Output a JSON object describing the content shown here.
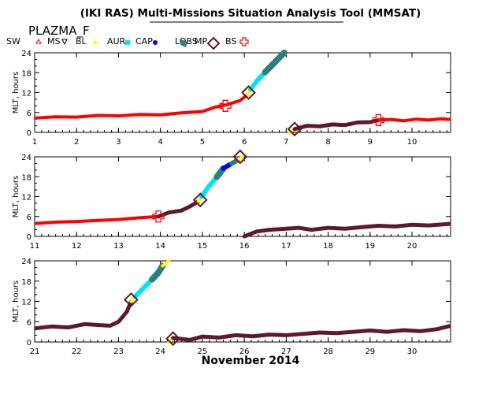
{
  "title": "(IKI RAS) Multi-Missions Situation Analysis Tool (MMSAT)",
  "subtitle": "PLAZMA_F",
  "legend": [
    {
      "label": "SW",
      "color": "#000000",
      "icon": "none-icon"
    },
    {
      "label": "MS",
      "color": "#ff0000",
      "icon": "triangle-up-icon"
    },
    {
      "label": "BL",
      "color": "#000000",
      "icon": "triangle-down-icon"
    },
    {
      "label": "AUR",
      "color": "#ffff00",
      "icon": "dot-icon"
    },
    {
      "label": "CAP",
      "color": "#00e5ee",
      "icon": "square-icon"
    },
    {
      "label": "LOBS",
      "color": "#0000ff",
      "icon": "dot-icon"
    },
    {
      "label": "MP",
      "color": "#2f7f7f",
      "icon": "flag-icon"
    },
    {
      "label": "BS",
      "color": "#5c1a2a",
      "icon": "diamond-icon"
    },
    {
      "label": "",
      "color": "#ff0000",
      "icon": "cross-icon"
    }
  ],
  "xlabel": "November 2014",
  "chart_data": [
    {
      "type": "line",
      "ylabel": "MLT, hours",
      "xlim": [
        1,
        10.92
      ],
      "ylim": [
        0,
        24
      ],
      "yticks": [
        0,
        6,
        12,
        18,
        24
      ],
      "xticks": [
        1,
        2,
        3,
        4,
        5,
        6,
        7,
        8,
        9,
        10
      ],
      "series": [
        {
          "color": "#ff0000",
          "width": 4,
          "x": [
            1.0,
            1.5,
            2.0,
            2.5,
            3.0,
            3.5,
            4.0,
            4.5,
            5.0,
            5.3,
            5.6,
            5.9,
            6.08
          ],
          "y": [
            4.3,
            4.7,
            4.6,
            5.1,
            5.0,
            5.4,
            5.3,
            5.9,
            6.3,
            7.6,
            8.4,
            9.6,
            11.4
          ]
        },
        {
          "color": "#ffff00",
          "width": 4,
          "x": [
            6.08,
            6.15
          ],
          "y": [
            11.4,
            13.0
          ]
        },
        {
          "color": "#00e5ee",
          "width": 6,
          "x": [
            6.15,
            6.3,
            6.5
          ],
          "y": [
            13.0,
            15.5,
            18.2
          ]
        },
        {
          "color": "#2f7f7f",
          "width": 8,
          "x": [
            6.5,
            6.7,
            6.95
          ],
          "y": [
            18.2,
            20.8,
            24.0
          ]
        },
        {
          "color": "#ffff00",
          "width": 4,
          "x": [
            7.08,
            7.2
          ],
          "y": [
            0.0,
            1.0
          ]
        },
        {
          "color": "#5c1a2a",
          "width": 5,
          "x": [
            7.2,
            7.5,
            7.8,
            8.1,
            8.4,
            8.7,
            9.0,
            9.2
          ],
          "y": [
            1.0,
            2.0,
            1.8,
            2.4,
            2.2,
            3.0,
            3.1,
            3.7
          ]
        },
        {
          "color": "#ff0000",
          "width": 4,
          "x": [
            9.2,
            9.5,
            9.8,
            10.1,
            10.4,
            10.7,
            10.92
          ],
          "y": [
            3.7,
            3.9,
            3.5,
            4.0,
            3.7,
            4.1,
            3.9
          ]
        }
      ],
      "markers": [
        {
          "kind": "cross",
          "x": 5.55,
          "y": 8.0
        },
        {
          "kind": "diamond",
          "x": 6.1,
          "y": 12.0
        },
        {
          "kind": "diamond",
          "x": 7.2,
          "y": 1.0
        },
        {
          "kind": "cross",
          "x": 9.2,
          "y": 3.7
        }
      ]
    },
    {
      "type": "line",
      "ylabel": "MLT, hours",
      "xlim": [
        11,
        20.92
      ],
      "ylim": [
        0,
        24
      ],
      "yticks": [
        0,
        6,
        12,
        18,
        24
      ],
      "xticks": [
        11,
        12,
        13,
        14,
        15,
        16,
        17,
        18,
        19,
        20
      ],
      "series": [
        {
          "color": "#ff0000",
          "width": 4,
          "x": [
            11.0,
            11.5,
            12.0,
            12.5,
            13.0,
            13.5,
            13.95
          ],
          "y": [
            3.9,
            4.3,
            4.5,
            4.8,
            5.1,
            5.6,
            6.0
          ]
        },
        {
          "color": "#5c1a2a",
          "width": 5,
          "x": [
            13.95,
            14.2,
            14.5,
            14.7,
            14.9
          ],
          "y": [
            6.0,
            7.2,
            7.8,
            9.0,
            10.5
          ]
        },
        {
          "color": "#ffff00",
          "width": 4,
          "x": [
            14.9,
            14.98
          ],
          "y": [
            10.5,
            12.0
          ]
        },
        {
          "color": "#00e5ee",
          "width": 6,
          "x": [
            14.98,
            15.15,
            15.35
          ],
          "y": [
            12.0,
            15.0,
            18.0
          ]
        },
        {
          "color": "#2f7f7f",
          "width": 8,
          "x": [
            15.35,
            15.5
          ],
          "y": [
            18.0,
            20.5
          ]
        },
        {
          "color": "#0000ff",
          "width": 6,
          "x": [
            15.5,
            15.7
          ],
          "y": [
            20.5,
            22.0
          ]
        },
        {
          "color": "#2f7f7f",
          "width": 6,
          "x": [
            15.7,
            15.85
          ],
          "y": [
            22.0,
            23.0
          ]
        },
        {
          "color": "#ffff00",
          "width": 4,
          "x": [
            15.85,
            15.95
          ],
          "y": [
            23.0,
            24.0
          ]
        },
        {
          "color": "#5c1a2a",
          "width": 5,
          "x": [
            16.0,
            16.3,
            16.6,
            17.0,
            17.3,
            17.6,
            18.0,
            18.4,
            18.8,
            19.2,
            19.6,
            20.0,
            20.4,
            20.92
          ],
          "y": [
            0.0,
            1.5,
            2.0,
            2.3,
            2.6,
            2.0,
            2.6,
            2.3,
            2.8,
            3.2,
            3.0,
            3.5,
            3.3,
            3.8
          ]
        }
      ],
      "markers": [
        {
          "kind": "cross",
          "x": 13.95,
          "y": 6.0
        },
        {
          "kind": "diamond",
          "x": 14.95,
          "y": 11.0
        },
        {
          "kind": "diamond",
          "x": 15.9,
          "y": 24.0
        }
      ]
    },
    {
      "type": "line",
      "ylabel": "MLT, hours",
      "xlim": [
        21,
        30.92
      ],
      "ylim": [
        0,
        24
      ],
      "yticks": [
        0,
        6,
        12,
        18,
        24
      ],
      "xticks": [
        21,
        22,
        23,
        24,
        25,
        26,
        27,
        28,
        29,
        30
      ],
      "series": [
        {
          "color": "#5c1a2a",
          "width": 5,
          "x": [
            21.0,
            21.4,
            21.8,
            22.2,
            22.5,
            22.8,
            23.0,
            23.2,
            23.3
          ],
          "y": [
            4.0,
            4.6,
            4.3,
            5.3,
            5.0,
            4.8,
            6.0,
            9.0,
            12.0
          ]
        },
        {
          "color": "#ffff00",
          "width": 4,
          "x": [
            23.3,
            23.4
          ],
          "y": [
            12.0,
            13.5
          ]
        },
        {
          "color": "#00e5ee",
          "width": 6,
          "x": [
            23.4,
            23.6,
            23.8
          ],
          "y": [
            13.5,
            16.0,
            18.5
          ]
        },
        {
          "color": "#2f7f7f",
          "width": 8,
          "x": [
            23.8,
            23.95,
            24.05
          ],
          "y": [
            18.5,
            20.5,
            22.5
          ]
        },
        {
          "color": "#ffff00",
          "width": 4,
          "x": [
            24.05,
            24.2
          ],
          "y": [
            22.5,
            24.0
          ]
        },
        {
          "color": "#ffff00",
          "width": 4,
          "x": [
            24.2,
            24.3
          ],
          "y": [
            0.0,
            1.2
          ]
        },
        {
          "color": "#5c1a2a",
          "width": 5,
          "x": [
            24.3,
            24.7,
            25.0,
            25.4,
            25.8,
            26.2,
            26.6,
            27.0,
            27.4,
            27.8,
            28.2,
            28.6,
            29.0,
            29.4,
            29.8,
            30.2,
            30.6,
            30.92
          ],
          "y": [
            1.2,
            0.6,
            1.6,
            1.3,
            2.0,
            1.7,
            2.2,
            2.0,
            2.4,
            2.8,
            2.6,
            3.0,
            3.4,
            3.0,
            3.5,
            3.2,
            3.8,
            4.8
          ]
        }
      ],
      "markers": [
        {
          "kind": "diamond",
          "x": 23.3,
          "y": 12.5
        },
        {
          "kind": "diamond",
          "x": 24.3,
          "y": 1.0
        }
      ]
    }
  ]
}
